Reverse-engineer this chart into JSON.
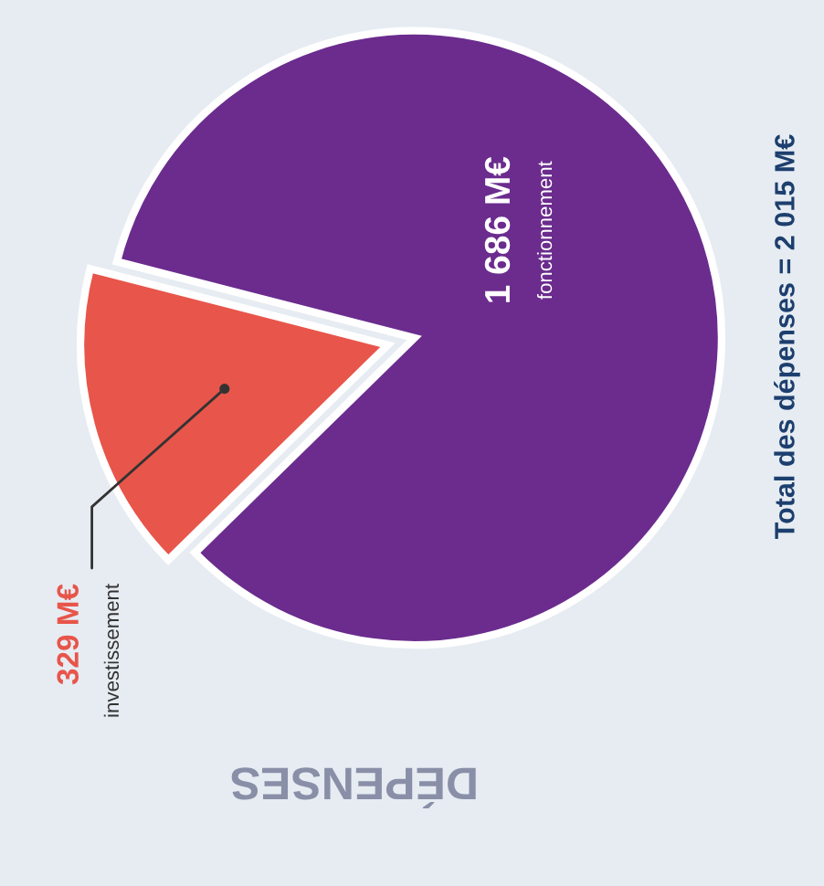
{
  "chart_data": {
    "type": "pie",
    "title": "DÉPENSES",
    "categories": [
      "fonctionnement",
      "investissement"
    ],
    "values": [
      1686,
      329
    ],
    "value_labels": [
      "1 686 M€",
      "329 M€"
    ],
    "colors": [
      "#6b2c8e",
      "#e8554a"
    ],
    "annotations": [
      "Total des dépenses = 2 015 M€"
    ]
  }
}
